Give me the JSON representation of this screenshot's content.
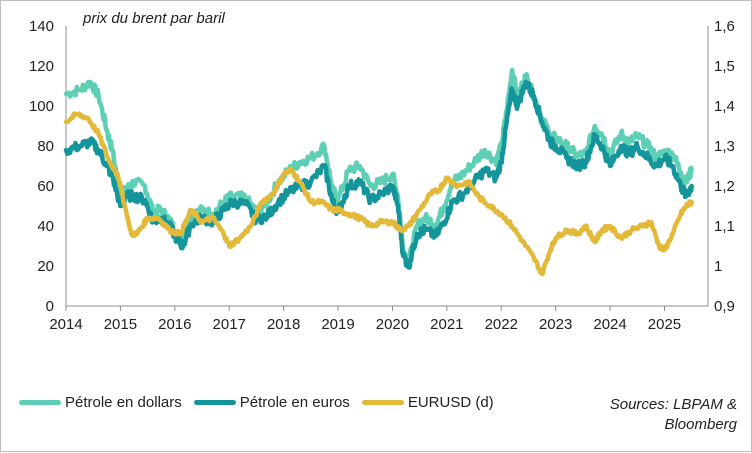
{
  "chart_data": {
    "type": "line",
    "annotation": "prix du brent par baril",
    "x_ticks": [
      "2014",
      "2015",
      "2016",
      "2017",
      "2018",
      "2019",
      "2020",
      "2021",
      "2022",
      "2023",
      "2024",
      "2025"
    ],
    "y_left": {
      "range": [
        0,
        140
      ],
      "ticks": [
        "0",
        "20",
        "40",
        "60",
        "80",
        "100",
        "120",
        "140"
      ]
    },
    "y_right": {
      "range": [
        0.9,
        1.6
      ],
      "ticks": [
        "0,9",
        "1",
        "1,1",
        "1,2",
        "1,3",
        "1,4",
        "1,5",
        "1,6"
      ]
    },
    "x_range": [
      2014.0,
      2025.8
    ],
    "series": [
      {
        "name": "Pétrole en dollars",
        "axis": "left",
        "color": "#5ccfb4",
        "x": [
          2014.0,
          2014.25,
          2014.45,
          2014.6,
          2014.75,
          2014.85,
          2015.0,
          2015.1,
          2015.25,
          2015.45,
          2015.6,
          2015.75,
          2015.9,
          2016.05,
          2016.15,
          2016.3,
          2016.5,
          2016.7,
          2016.9,
          2017.05,
          2017.3,
          2017.5,
          2017.7,
          2017.9,
          2018.1,
          2018.3,
          2018.5,
          2018.75,
          2018.9,
          2019.0,
          2019.2,
          2019.4,
          2019.6,
          2019.8,
          2020.0,
          2020.1,
          2020.2,
          2020.3,
          2020.45,
          2020.6,
          2020.8,
          2020.95,
          2021.1,
          2021.3,
          2021.5,
          2021.7,
          2021.9,
          2022.0,
          2022.1,
          2022.2,
          2022.3,
          2022.45,
          2022.6,
          2022.75,
          2022.9,
          2023.0,
          2023.2,
          2023.4,
          2023.55,
          2023.72,
          2023.85,
          2024.0,
          2024.2,
          2024.35,
          2024.5,
          2024.7,
          2024.85,
          2025.0,
          2025.15,
          2025.3,
          2025.4,
          2025.5
        ],
        "values": [
          106,
          108,
          112,
          105,
          88,
          78,
          55,
          58,
          62,
          60,
          47,
          48,
          43,
          36,
          33,
          45,
          48,
          46,
          52,
          55,
          54,
          47,
          52,
          62,
          68,
          72,
          74,
          80,
          58,
          53,
          68,
          70,
          60,
          62,
          66,
          55,
          28,
          22,
          40,
          44,
          41,
          50,
          62,
          66,
          72,
          78,
          72,
          80,
          98,
          118,
          105,
          115,
          105,
          94,
          85,
          84,
          80,
          75,
          76,
          90,
          86,
          76,
          86,
          82,
          85,
          80,
          74,
          77,
          76,
          67,
          62,
          68
        ]
      },
      {
        "name": "Pétrole en euros",
        "axis": "left",
        "color": "#13959b",
        "x": [
          2014.0,
          2014.25,
          2014.45,
          2014.6,
          2014.75,
          2014.85,
          2015.0,
          2015.1,
          2015.25,
          2015.45,
          2015.6,
          2015.75,
          2015.9,
          2016.05,
          2016.15,
          2016.3,
          2016.5,
          2016.7,
          2016.9,
          2017.05,
          2017.3,
          2017.5,
          2017.7,
          2017.9,
          2018.1,
          2018.3,
          2018.5,
          2018.75,
          2018.9,
          2019.0,
          2019.2,
          2019.4,
          2019.6,
          2019.8,
          2020.0,
          2020.1,
          2020.2,
          2020.3,
          2020.45,
          2020.6,
          2020.8,
          2020.95,
          2021.1,
          2021.3,
          2021.5,
          2021.7,
          2021.9,
          2022.0,
          2022.1,
          2022.2,
          2022.3,
          2022.45,
          2022.6,
          2022.75,
          2022.9,
          2023.0,
          2023.2,
          2023.4,
          2023.55,
          2023.72,
          2023.85,
          2024.0,
          2024.2,
          2024.35,
          2024.5,
          2024.7,
          2024.85,
          2025.0,
          2025.15,
          2025.3,
          2025.4,
          2025.5
        ],
        "values": [
          78,
          80,
          82,
          78,
          70,
          65,
          50,
          55,
          55,
          53,
          42,
          44,
          40,
          33,
          30,
          41,
          44,
          42,
          48,
          52,
          51,
          43,
          45,
          52,
          57,
          60,
          62,
          70,
          52,
          47,
          60,
          62,
          53,
          56,
          60,
          50,
          25,
          20,
          36,
          38,
          35,
          42,
          52,
          56,
          62,
          68,
          64,
          72,
          92,
          108,
          100,
          112,
          105,
          92,
          82,
          80,
          74,
          70,
          72,
          85,
          80,
          70,
          80,
          76,
          80,
          74,
          70,
          74,
          70,
          60,
          55,
          60
        ]
      },
      {
        "name": "EURUSD (d)",
        "axis": "right",
        "color": "#e3b93a",
        "x": [
          2014.0,
          2014.2,
          2014.4,
          2014.6,
          2014.8,
          2014.95,
          2015.1,
          2015.2,
          2015.3,
          2015.5,
          2015.7,
          2015.9,
          2016.1,
          2016.3,
          2016.5,
          2016.7,
          2016.9,
          2017.0,
          2017.2,
          2017.4,
          2017.6,
          2017.8,
          2018.0,
          2018.15,
          2018.3,
          2018.5,
          2018.7,
          2018.9,
          2019.0,
          2019.2,
          2019.4,
          2019.6,
          2019.8,
          2020.0,
          2020.15,
          2020.3,
          2020.5,
          2020.7,
          2020.85,
          2021.0,
          2021.2,
          2021.4,
          2021.6,
          2021.8,
          2022.0,
          2022.2,
          2022.4,
          2022.6,
          2022.75,
          2022.9,
          2023.0,
          2023.2,
          2023.4,
          2023.55,
          2023.72,
          2023.85,
          2024.0,
          2024.2,
          2024.4,
          2024.6,
          2024.75,
          2024.9,
          2025.0,
          2025.15,
          2025.3,
          2025.4,
          2025.5
        ],
        "values": [
          1.36,
          1.38,
          1.37,
          1.33,
          1.26,
          1.23,
          1.14,
          1.08,
          1.08,
          1.12,
          1.12,
          1.09,
          1.08,
          1.14,
          1.11,
          1.12,
          1.08,
          1.05,
          1.07,
          1.1,
          1.16,
          1.18,
          1.23,
          1.24,
          1.21,
          1.16,
          1.16,
          1.14,
          1.14,
          1.13,
          1.12,
          1.1,
          1.11,
          1.11,
          1.09,
          1.1,
          1.14,
          1.18,
          1.19,
          1.22,
          1.2,
          1.21,
          1.17,
          1.15,
          1.13,
          1.1,
          1.06,
          1.02,
          0.98,
          1.04,
          1.07,
          1.09,
          1.08,
          1.1,
          1.06,
          1.09,
          1.1,
          1.07,
          1.09,
          1.1,
          1.11,
          1.05,
          1.04,
          1.08,
          1.13,
          1.15,
          1.16
        ]
      }
    ]
  },
  "legend": [
    {
      "label": "Pétrole en dollars",
      "color": "#5ccfb4"
    },
    {
      "label": "Pétrole en euros",
      "color": "#13959b"
    },
    {
      "label": "EURUSD (d)",
      "color": "#e3b93a"
    }
  ],
  "sources": {
    "line1": "Sources: LBPAM &",
    "line2": "Bloomberg"
  }
}
